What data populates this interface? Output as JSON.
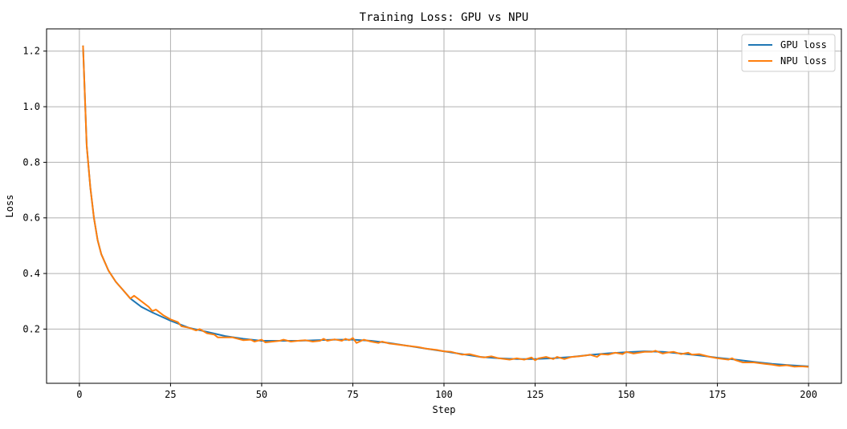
{
  "chart_data": {
    "type": "line",
    "title": "Training Loss: GPU vs NPU",
    "xlabel": "Step",
    "ylabel": "Loss",
    "xlim": [
      -9,
      209
    ],
    "ylim": [
      0.005,
      1.28
    ],
    "xticks": [
      0,
      25,
      50,
      75,
      100,
      125,
      150,
      175,
      200
    ],
    "xtick_labels": [
      "0",
      "25",
      "50",
      "75",
      "100",
      "125",
      "150",
      "175",
      "200"
    ],
    "yticks": [
      0.2,
      0.4,
      0.6,
      0.8,
      1.0,
      1.2
    ],
    "ytick_labels": [
      "0.2",
      "0.4",
      "0.6",
      "0.8",
      "1.0",
      "1.2"
    ],
    "grid": true,
    "legend_position": "top-right",
    "series": [
      {
        "name": "GPU loss",
        "color": "#1f77b4",
        "x": [
          1,
          2,
          3,
          4,
          5,
          6,
          8,
          10,
          12,
          14,
          17,
          20,
          25,
          30,
          35,
          40,
          45,
          50,
          55,
          60,
          65,
          70,
          75,
          80,
          85,
          90,
          95,
          100,
          105,
          110,
          115,
          120,
          125,
          130,
          135,
          140,
          145,
          150,
          155,
          160,
          165,
          170,
          175,
          180,
          185,
          190,
          195,
          200
        ],
        "y": [
          1.22,
          0.86,
          0.71,
          0.6,
          0.52,
          0.47,
          0.41,
          0.37,
          0.34,
          0.31,
          0.28,
          0.26,
          0.23,
          0.205,
          0.19,
          0.175,
          0.165,
          0.158,
          0.158,
          0.158,
          0.16,
          0.162,
          0.162,
          0.158,
          0.15,
          0.14,
          0.13,
          0.12,
          0.11,
          0.1,
          0.095,
          0.092,
          0.092,
          0.095,
          0.1,
          0.107,
          0.113,
          0.117,
          0.12,
          0.118,
          0.112,
          0.105,
          0.097,
          0.09,
          0.082,
          0.075,
          0.07,
          0.066
        ]
      },
      {
        "name": "NPU loss",
        "color": "#ff7f0e",
        "x": [
          1,
          2,
          3,
          4,
          5,
          6,
          8,
          10,
          12,
          14,
          15,
          17,
          19,
          20,
          21,
          23,
          25,
          27,
          28,
          30,
          32,
          33,
          35,
          37,
          38,
          40,
          42,
          45,
          47,
          48,
          50,
          51,
          53,
          55,
          56,
          58,
          60,
          62,
          64,
          66,
          67,
          68,
          70,
          72,
          73,
          74,
          75,
          76,
          78,
          80,
          82,
          83,
          85,
          87,
          90,
          93,
          95,
          98,
          100,
          102,
          105,
          107,
          110,
          111,
          113,
          115,
          118,
          120,
          122,
          124,
          125,
          126,
          128,
          130,
          131,
          133,
          135,
          137,
          139,
          140,
          142,
          143,
          145,
          147,
          149,
          150,
          152,
          155,
          157,
          158,
          160,
          161,
          163,
          165,
          167,
          168,
          170,
          173,
          175,
          178,
          179,
          180,
          182,
          185,
          188,
          190,
          192,
          194,
          196,
          198,
          200
        ],
        "y": [
          1.22,
          0.86,
          0.71,
          0.6,
          0.52,
          0.47,
          0.41,
          0.37,
          0.34,
          0.31,
          0.32,
          0.3,
          0.28,
          0.265,
          0.27,
          0.25,
          0.235,
          0.225,
          0.21,
          0.205,
          0.195,
          0.2,
          0.185,
          0.18,
          0.17,
          0.17,
          0.17,
          0.16,
          0.162,
          0.155,
          0.162,
          0.152,
          0.155,
          0.158,
          0.162,
          0.155,
          0.158,
          0.16,
          0.155,
          0.158,
          0.165,
          0.158,
          0.163,
          0.158,
          0.165,
          0.16,
          0.168,
          0.15,
          0.162,
          0.155,
          0.15,
          0.155,
          0.148,
          0.145,
          0.14,
          0.135,
          0.13,
          0.125,
          0.12,
          0.118,
          0.108,
          0.11,
          0.1,
          0.098,
          0.102,
          0.095,
          0.09,
          0.095,
          0.09,
          0.098,
          0.088,
          0.095,
          0.1,
          0.092,
          0.1,
          0.092,
          0.1,
          0.102,
          0.105,
          0.108,
          0.1,
          0.11,
          0.108,
          0.115,
          0.11,
          0.118,
          0.112,
          0.118,
          0.118,
          0.122,
          0.112,
          0.115,
          0.118,
          0.11,
          0.115,
          0.108,
          0.11,
          0.1,
          0.095,
          0.09,
          0.095,
          0.088,
          0.08,
          0.08,
          0.075,
          0.072,
          0.068,
          0.07,
          0.065,
          0.066,
          0.064
        ]
      }
    ]
  }
}
